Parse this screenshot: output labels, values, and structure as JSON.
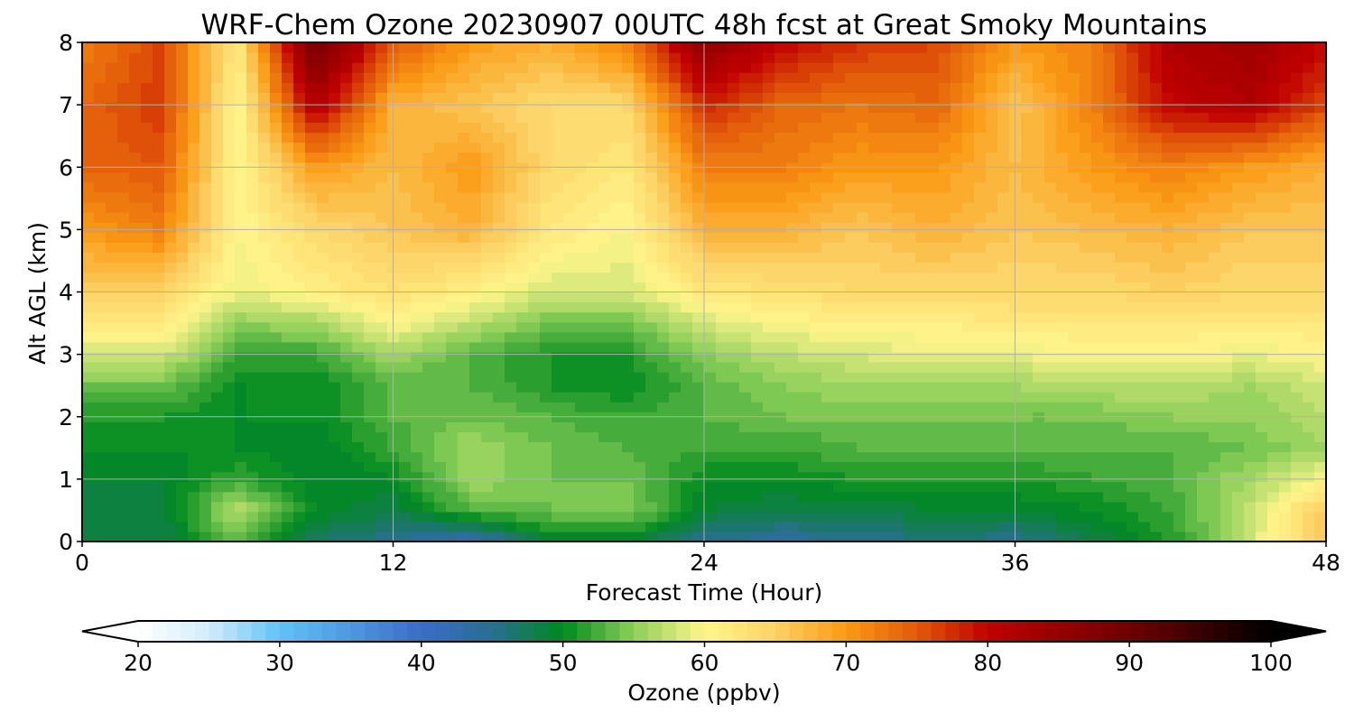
{
  "chart_data": {
    "type": "heatmap",
    "title": "WRF-Chem Ozone  20230907 00UTC 48h fcst at Great Smoky Mountains",
    "xlabel": "Forecast Time (Hour)",
    "ylabel": "Alt AGL (km)",
    "xlim": [
      0,
      48
    ],
    "ylim": [
      0,
      8
    ],
    "xticks": [
      0,
      12,
      24,
      36,
      48
    ],
    "yticks": [
      0,
      1,
      2,
      3,
      4,
      5,
      6,
      7,
      8
    ],
    "grid": true,
    "colorbar": {
      "label": "Ozone  (ppbv)",
      "min": 20,
      "max": 100,
      "ticks": [
        20,
        30,
        40,
        50,
        60,
        70,
        80,
        90,
        100
      ],
      "extend": "both",
      "levels": 80
    },
    "x": [
      0,
      3,
      6,
      9,
      12,
      15,
      18,
      21,
      24,
      27,
      30,
      33,
      36,
      39,
      42,
      45,
      48
    ],
    "y": [
      0,
      0.5,
      1,
      1.5,
      2,
      2.5,
      3,
      3.5,
      4,
      5,
      6,
      7,
      8
    ],
    "z": [
      [
        48,
        48,
        53,
        47,
        45,
        42,
        49,
        49,
        45,
        44,
        45,
        46,
        45,
        48,
        51,
        58,
        66
      ],
      [
        49,
        48,
        57,
        50,
        48,
        53,
        54,
        55,
        49,
        48,
        48,
        49,
        49,
        50,
        52,
        57,
        66
      ],
      [
        49,
        49,
        52,
        49,
        50,
        56,
        54,
        54,
        50,
        50,
        51,
        51,
        51,
        52,
        53,
        56,
        60
      ],
      [
        50,
        50,
        50,
        49,
        52,
        56,
        54,
        53,
        52,
        52,
        53,
        53,
        53,
        53,
        53,
        54,
        56
      ],
      [
        51,
        51,
        50,
        50,
        53,
        54,
        53,
        52,
        53,
        54,
        54,
        54,
        54,
        54,
        55,
        55,
        57
      ],
      [
        54,
        54,
        50,
        50,
        53,
        53,
        51,
        50,
        53,
        55,
        56,
        56,
        56,
        57,
        57,
        56,
        58
      ],
      [
        58,
        58,
        52,
        52,
        56,
        53,
        51,
        51,
        55,
        57,
        58,
        59,
        59,
        60,
        60,
        59,
        60
      ],
      [
        62,
        62,
        55,
        56,
        60,
        57,
        54,
        54,
        58,
        60,
        61,
        61,
        62,
        62,
        62,
        62,
        62
      ],
      [
        65,
        65,
        59,
        61,
        63,
        61,
        58,
        58,
        62,
        63,
        64,
        64,
        64,
        64,
        65,
        64,
        64
      ],
      [
        70,
        72,
        60,
        64,
        66,
        68,
        62,
        60,
        68,
        68,
        66,
        68,
        66,
        67,
        68,
        66,
        66
      ],
      [
        74,
        75,
        60,
        70,
        67,
        70,
        64,
        62,
        72,
        72,
        70,
        70,
        67,
        70,
        72,
        70,
        68
      ],
      [
        74,
        77,
        60,
        82,
        68,
        66,
        64,
        64,
        78,
        74,
        73,
        74,
        66,
        72,
        80,
        82,
        76
      ],
      [
        72,
        76,
        62,
        90,
        75,
        70,
        68,
        72,
        86,
        80,
        77,
        76,
        70,
        72,
        82,
        84,
        80
      ]
    ]
  },
  "colors": {
    "stops": [
      {
        "v": 20,
        "c": "#ffffff"
      },
      {
        "v": 25,
        "c": "#d2ecfb"
      },
      {
        "v": 30,
        "c": "#62c2f6"
      },
      {
        "v": 40,
        "c": "#3c6cc8"
      },
      {
        "v": 45,
        "c": "#2a6e90"
      },
      {
        "v": 50,
        "c": "#008a1e"
      },
      {
        "v": 55,
        "c": "#8ccf5a"
      },
      {
        "v": 60,
        "c": "#fff58c"
      },
      {
        "v": 65,
        "c": "#fcd266"
      },
      {
        "v": 70,
        "c": "#fa9a14"
      },
      {
        "v": 75,
        "c": "#e25a0a"
      },
      {
        "v": 80,
        "c": "#c00000"
      },
      {
        "v": 90,
        "c": "#6e0000"
      },
      {
        "v": 100,
        "c": "#000000"
      }
    ],
    "grid": "#b0b0b0"
  }
}
